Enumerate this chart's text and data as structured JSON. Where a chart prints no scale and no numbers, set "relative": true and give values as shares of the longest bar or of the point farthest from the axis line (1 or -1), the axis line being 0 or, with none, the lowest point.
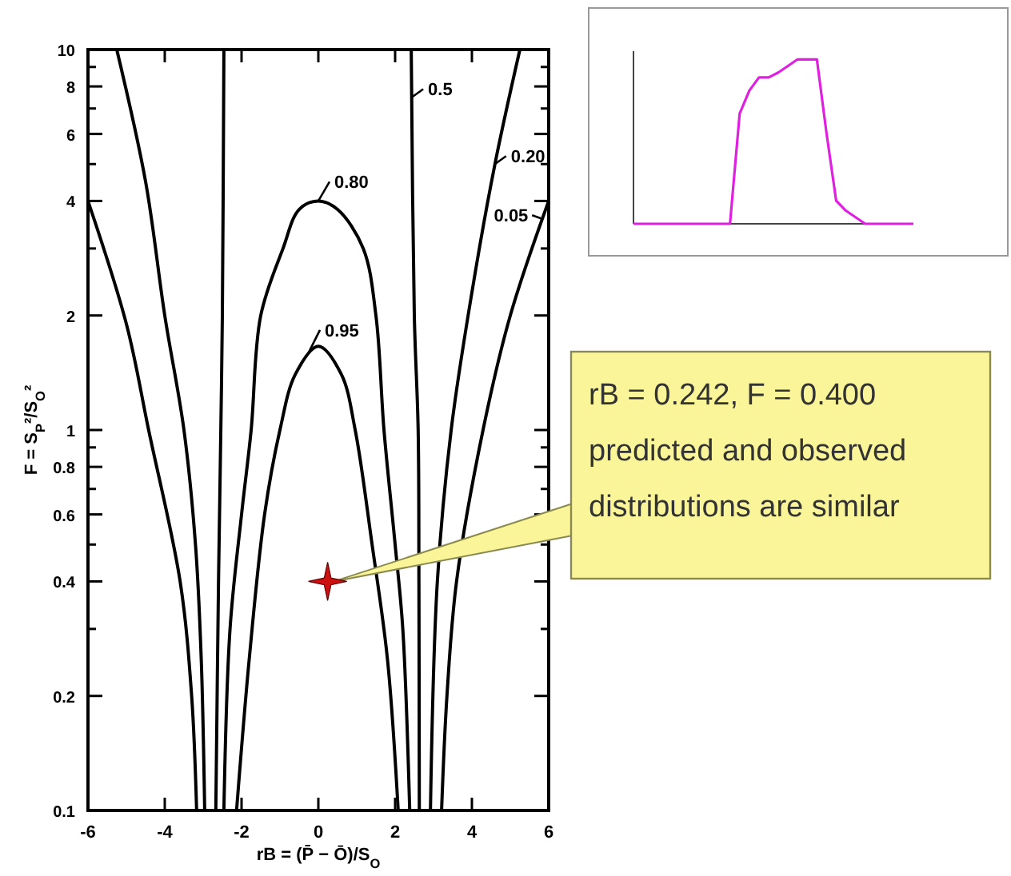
{
  "chart_data": [
    {
      "type": "line",
      "xlabel": "rB = (P̄ − Ō)/S$_{O}$",
      "ylabel": "F = S$_{P}$²/S$_{O}$²",
      "log": "y",
      "grid": false,
      "marker": "none",
      "line_style": "solid",
      "xlim": [
        -6,
        6
      ],
      "xticks": [
        -6,
        -4,
        -2,
        0,
        2,
        4,
        6
      ],
      "ylim": [
        0.1,
        10
      ],
      "yticks": [
        0.1,
        0.2,
        {
          "value": 0.3,
          "label": null
        },
        0.4,
        {
          "value": 0.5,
          "label": null
        },
        0.6,
        {
          "value": 0.7,
          "label": null
        },
        0.8,
        {
          "value": 0.9,
          "label": null
        },
        1,
        2,
        {
          "value": 3,
          "label": null
        },
        4,
        {
          "value": 5,
          "label": null
        },
        6,
        {
          "value": 7,
          "label": null
        },
        8,
        {
          "value": 9,
          "label": null
        },
        10
      ],
      "series": [
        {
          "color": "#000000",
          "x": [
            -6,
            -5,
            -4.42,
            -3.6,
            -3.3,
            -3.17
          ],
          "values": [
            4,
            1.9,
            1,
            0.4,
            0.2,
            0.1
          ]
        },
        {
          "color": "#000000",
          "x": [
            6,
            5,
            4.29,
            3.6,
            3.35,
            3.21
          ],
          "values": [
            4,
            2,
            1,
            0.4,
            0.2,
            0.1
          ]
        },
        {
          "color": "#000000",
          "x": [
            -5.25,
            -4.5,
            -4,
            -3.5,
            -3.2,
            -3.05,
            -2.96
          ],
          "values": [
            10,
            4.5,
            2,
            1,
            0.5,
            0.25,
            0.1
          ]
        },
        {
          "color": "#000000",
          "x": [
            5.25,
            4.6,
            4,
            3.46,
            3.1,
            2.92
          ],
          "values": [
            10,
            5,
            2.3,
            1,
            0.4,
            0.1
          ]
        },
        {
          "color": "#000000",
          "x": [
            -2.46,
            -2.5,
            -2.54,
            -2.6,
            -2.67
          ],
          "values": [
            10,
            2,
            1,
            0.4,
            0.1
          ]
        },
        {
          "color": "#000000",
          "x": [
            2.42,
            2.5,
            2.6,
            2.62,
            2.63
          ],
          "values": [
            10,
            2,
            1,
            0.4,
            0.1
          ]
        },
        {
          "color": "#000000",
          "x": [
            -2.46,
            -2.3,
            -2,
            -1.75,
            -1.5,
            -0.92,
            -0.5,
            0,
            0.5,
            1.17,
            1.5,
            1.71,
            2,
            2.2,
            2.38
          ],
          "values": [
            0.1,
            0.3,
            0.6,
            1,
            2,
            3,
            3.8,
            4,
            3.8,
            3,
            2,
            1,
            0.5,
            0.3,
            0.1
          ]
        },
        {
          "color": "#000000",
          "x": [
            -2.13,
            -1.8,
            -1.4,
            -1,
            -0.6,
            0,
            0.6,
            0.96,
            1.4,
            1.8,
            2.08
          ],
          "values": [
            0.1,
            0.25,
            0.6,
            1,
            1.4,
            1.66,
            1.4,
            1,
            0.5,
            0.25,
            0.1
          ]
        },
        {
          "type": "scatter",
          "marker": "star",
          "color": "#cc1111",
          "x": [
            0.242
          ],
          "values": [
            0.4
          ]
        }
      ],
      "annotations": [
        {
          "text": "0.5",
          "x": 2.44,
          "y": 7.5
        },
        {
          "text": "0.20",
          "x": 4.6,
          "y": 5
        },
        {
          "text": "0.05",
          "x": 5.8,
          "y": 3.6
        },
        {
          "text": "0.80",
          "x": 0,
          "y": 4
        },
        {
          "text": "0.95",
          "x": -0.25,
          "y": 1.6
        },
        {
          "text": "rB = 0.242, F = 0.400\npredicted and observed\ndistributions are similar",
          "x": 0.242,
          "y": 0.4
        }
      ]
    },
    {
      "type": "line",
      "relative": true,
      "marker": "none",
      "categories": [
        null,
        null,
        null,
        null,
        null,
        null,
        null,
        null,
        null,
        null,
        null,
        null,
        null,
        null,
        null,
        null,
        null,
        null,
        null,
        null,
        null,
        null,
        null,
        null,
        null,
        null,
        null,
        null,
        null,
        null
      ],
      "series": [
        {
          "color": "#e020e0",
          "values": [
            0,
            0,
            0,
            0,
            0,
            0,
            0,
            0,
            0,
            0,
            0,
            0.67,
            0.81,
            0.89,
            0.89,
            0.92,
            0.96,
            1,
            1,
            1,
            0.55,
            0.14,
            0.08,
            0.04,
            0,
            0,
            0,
            0,
            0,
            0
          ]
        }
      ]
    }
  ]
}
